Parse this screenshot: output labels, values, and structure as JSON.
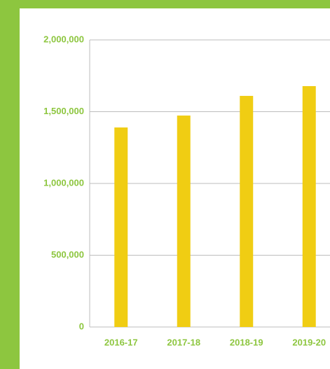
{
  "chart_data": {
    "type": "bar",
    "categories": [
      "2016-17",
      "2017-18",
      "2018-19",
      "2019-20"
    ],
    "values": [
      1390000,
      1473000,
      1610000,
      1678000
    ],
    "color": "#f0cd13",
    "ylim": [
      0,
      2000000
    ],
    "yticks": [
      0,
      {
        "value": 500000,
        "label": "500,000"
      },
      {
        "value": 1000000,
        "label": "1,000,000"
      },
      {
        "value": 1500000,
        "label": "1,500,000"
      },
      {
        "value": 2000000,
        "label": "2,000,000"
      }
    ],
    "grid": true
  }
}
